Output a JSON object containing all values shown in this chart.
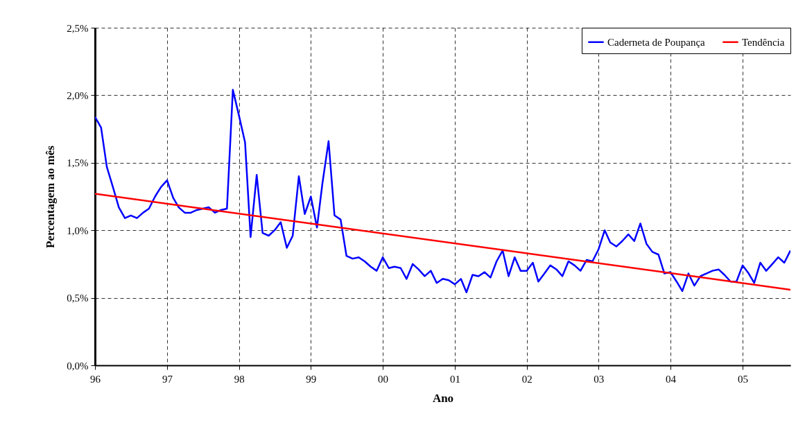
{
  "chart_data": {
    "type": "line",
    "xlabel": "Ano",
    "ylabel": "Percentagem ao mês",
    "x": [
      "1996-01",
      "1996-02",
      "1996-03",
      "1996-04",
      "1996-05",
      "1996-06",
      "1996-07",
      "1996-08",
      "1996-09",
      "1996-10",
      "1996-11",
      "1996-12",
      "1997-01",
      "1997-02",
      "1997-03",
      "1997-04",
      "1997-05",
      "1997-06",
      "1997-07",
      "1997-08",
      "1997-09",
      "1997-10",
      "1997-11",
      "1997-12",
      "1998-01",
      "1998-02",
      "1998-03",
      "1998-04",
      "1998-05",
      "1998-06",
      "1998-07",
      "1998-08",
      "1998-09",
      "1998-10",
      "1998-11",
      "1998-12",
      "1999-01",
      "1999-02",
      "1999-03",
      "1999-04",
      "1999-05",
      "1999-06",
      "1999-07",
      "1999-08",
      "1999-09",
      "1999-10",
      "1999-11",
      "1999-12",
      "2000-01",
      "2000-02",
      "2000-03",
      "2000-04",
      "2000-05",
      "2000-06",
      "2000-07",
      "2000-08",
      "2000-09",
      "2000-10",
      "2000-11",
      "2000-12",
      "2001-01",
      "2001-02",
      "2001-03",
      "2001-04",
      "2001-05",
      "2001-06",
      "2001-07",
      "2001-08",
      "2001-09",
      "2001-10",
      "2001-11",
      "2001-12",
      "2002-01",
      "2002-02",
      "2002-03",
      "2002-04",
      "2002-05",
      "2002-06",
      "2002-07",
      "2002-08",
      "2002-09",
      "2002-10",
      "2002-11",
      "2002-12",
      "2003-01",
      "2003-02",
      "2003-03",
      "2003-04",
      "2003-05",
      "2003-06",
      "2003-07",
      "2003-08",
      "2003-09",
      "2003-10",
      "2003-11",
      "2003-12",
      "2004-01",
      "2004-02",
      "2004-03",
      "2004-04",
      "2004-05",
      "2004-06",
      "2004-07",
      "2004-08",
      "2004-09",
      "2004-10",
      "2004-11",
      "2004-12",
      "2005-01",
      "2005-02",
      "2005-03",
      "2005-04",
      "2005-05",
      "2005-06",
      "2005-07",
      "2005-08",
      "2005-09"
    ],
    "series": [
      {
        "name": "Caderneta de Poupança",
        "color": "#0000ff",
        "values": [
          1.84,
          1.76,
          1.47,
          1.32,
          1.17,
          1.09,
          1.11,
          1.09,
          1.13,
          1.16,
          1.25,
          1.32,
          1.37,
          1.24,
          1.17,
          1.13,
          1.13,
          1.15,
          1.16,
          1.17,
          1.13,
          1.15,
          1.16,
          2.04,
          1.85,
          1.65,
          0.95,
          1.41,
          0.98,
          0.96,
          1.0,
          1.06,
          0.87,
          0.96,
          1.4,
          1.12,
          1.25,
          1.02,
          1.35,
          1.66,
          1.11,
          1.08,
          0.81,
          0.79,
          0.8,
          0.77,
          0.73,
          0.7,
          0.8,
          0.72,
          0.73,
          0.72,
          0.64,
          0.75,
          0.71,
          0.66,
          0.7,
          0.61,
          0.64,
          0.63,
          0.6,
          0.64,
          0.54,
          0.67,
          0.66,
          0.69,
          0.65,
          0.77,
          0.85,
          0.66,
          0.8,
          0.7,
          0.7,
          0.76,
          0.62,
          0.68,
          0.74,
          0.71,
          0.66,
          0.77,
          0.74,
          0.7,
          0.78,
          0.77,
          0.86,
          1.0,
          0.91,
          0.88,
          0.92,
          0.97,
          0.92,
          1.05,
          0.9,
          0.84,
          0.82,
          0.68,
          0.69,
          0.62,
          0.55,
          0.68,
          0.59,
          0.66,
          0.68,
          0.7,
          0.71,
          0.67,
          0.62,
          0.62,
          0.74,
          0.68,
          0.61,
          0.76,
          0.7,
          0.75,
          0.8,
          0.76,
          0.85
        ]
      },
      {
        "name": "Tendência",
        "color": "#ff0000",
        "type": "line",
        "x": [
          "1996-01",
          "2005-09"
        ],
        "values": [
          1.27,
          0.56
        ]
      }
    ],
    "xlim": [
      "1996-01",
      "2005-09"
    ],
    "xticks": [
      {
        "value": "1996",
        "label": "96"
      },
      {
        "value": "1997",
        "label": "97"
      },
      {
        "value": "1998",
        "label": "98"
      },
      {
        "value": "1999",
        "label": "99"
      },
      {
        "value": "2000",
        "label": "00"
      },
      {
        "value": "2001",
        "label": "01"
      },
      {
        "value": "2002",
        "label": "02"
      },
      {
        "value": "2003",
        "label": "03"
      },
      {
        "value": "2004",
        "label": "04"
      },
      {
        "value": "2005",
        "label": "05"
      }
    ],
    "ylim": [
      0,
      2.5
    ],
    "yticks": [
      {
        "value": 0,
        "label": "0,0%"
      },
      {
        "value": 0.5,
        "label": "0,5%"
      },
      {
        "value": 1,
        "label": "1,0%"
      },
      {
        "value": 1.5,
        "label": "1,5%"
      },
      {
        "value": 2,
        "label": "2,0%"
      },
      {
        "value": 2.5,
        "label": "2,5%"
      }
    ],
    "grid": true,
    "legend": "top right",
    "line_style": "solid"
  }
}
